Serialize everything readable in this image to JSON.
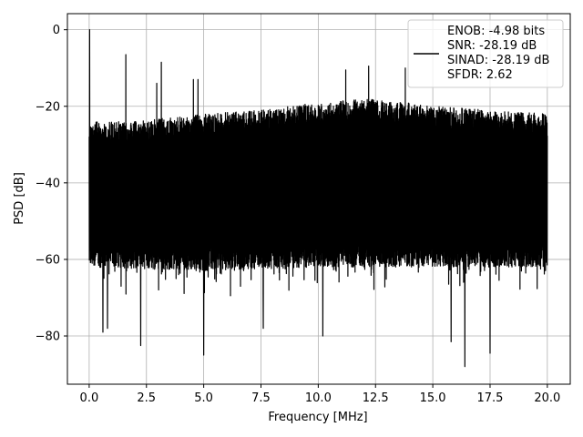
{
  "chart_data": {
    "type": "line",
    "xlabel": "Frequency [MHz]",
    "ylabel": "PSD [dB]",
    "xlim": [
      -0.95,
      21.0
    ],
    "ylim": [
      -92.6,
      4.2
    ],
    "xticks": [
      0.0,
      2.5,
      5.0,
      7.5,
      10.0,
      12.5,
      15.0,
      17.5,
      20.0
    ],
    "xtick_labels": [
      "0.0",
      "2.5",
      "5.0",
      "7.5",
      "10.0",
      "12.5",
      "15.0",
      "17.5",
      "20.0"
    ],
    "yticks": [
      0,
      -20,
      -40,
      -60,
      -80
    ],
    "ytick_labels": [
      "0",
      "−20",
      "−40",
      "−60",
      "−80"
    ],
    "grid": true,
    "legend_position": "top-right",
    "legend_lines": [
      "ENOB: -4.98 bits",
      "SNR: -28.19 dB",
      "SINAD: -28.19 dB",
      "SFDR: 2.62"
    ],
    "series_color": "#000000",
    "grid_color": "#b0b0b0",
    "noise_band": {
      "x_range": [
        0.0,
        20.0
      ],
      "upper_envelope": [
        {
          "x": 0.0,
          "y": -24
        },
        {
          "x": 2.0,
          "y": -24
        },
        {
          "x": 5.0,
          "y": -22
        },
        {
          "x": 7.5,
          "y": -21
        },
        {
          "x": 10.0,
          "y": -19
        },
        {
          "x": 12.5,
          "y": -18
        },
        {
          "x": 15.0,
          "y": -20
        },
        {
          "x": 17.5,
          "y": -21
        },
        {
          "x": 20.0,
          "y": -22
        }
      ],
      "lower_envelope": [
        {
          "x": 0.0,
          "y": -62
        },
        {
          "x": 5.0,
          "y": -63
        },
        {
          "x": 10.0,
          "y": -62
        },
        {
          "x": 15.0,
          "y": -62
        },
        {
          "x": 20.0,
          "y": -62
        }
      ]
    },
    "peaks": [
      {
        "x": 0.02,
        "y": 0.0
      },
      {
        "x": 1.6,
        "y": -6.5
      },
      {
        "x": 2.95,
        "y": -14
      },
      {
        "x": 3.15,
        "y": -8.5
      },
      {
        "x": 4.55,
        "y": -13
      },
      {
        "x": 4.75,
        "y": -13
      },
      {
        "x": 11.2,
        "y": -10.5
      },
      {
        "x": 12.2,
        "y": -9.5
      },
      {
        "x": 13.8,
        "y": -10
      }
    ],
    "dips": [
      {
        "x": 0.6,
        "y": -79
      },
      {
        "x": 0.8,
        "y": -78
      },
      {
        "x": 2.25,
        "y": -82.5
      },
      {
        "x": 5.0,
        "y": -85
      },
      {
        "x": 7.6,
        "y": -78
      },
      {
        "x": 10.2,
        "y": -80
      },
      {
        "x": 15.8,
        "y": -81.5
      },
      {
        "x": 16.4,
        "y": -88
      },
      {
        "x": 17.5,
        "y": -84.5
      }
    ]
  }
}
